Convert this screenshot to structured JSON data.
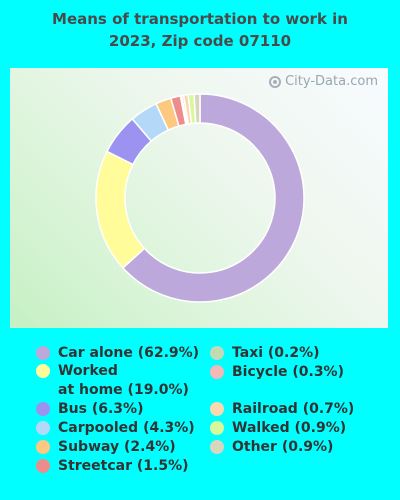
{
  "title_lines": [
    "Means of transportation to work in",
    "2023, Zip code 07110"
  ],
  "watermark": "City-Data.com",
  "chart_data": {
    "type": "pie",
    "donut": true,
    "title": "Means of transportation to work in 2023, Zip code 07110",
    "categories": [
      "Car alone",
      "Worked at home",
      "Bus",
      "Carpooled",
      "Subway",
      "Streetcar",
      "Taxi",
      "Bicycle",
      "Railroad",
      "Walked",
      "Other"
    ],
    "values": [
      62.9,
      19.0,
      6.3,
      4.3,
      2.4,
      1.5,
      0.2,
      0.3,
      0.7,
      0.9,
      0.9
    ],
    "colors": [
      "#bca8db",
      "#fffc99",
      "#9b93ef",
      "#b4d9f8",
      "#fdc980",
      "#ee8c8c",
      "#c2dbb4",
      "#f5b8b8",
      "#fcd8ae",
      "#d9f79b",
      "#d8d6bd"
    ],
    "legend": "bottom",
    "legend_labels": [
      "Car alone (62.9%)",
      "Worked\nat home (19.0%)",
      "Bus (6.3%)",
      "Carpooled (4.3%)",
      "Subway (2.4%)",
      "Streetcar (1.5%)",
      "Taxi (0.2%)",
      "Bicycle (0.3%)",
      "Railroad (0.7%)",
      "Walked (0.9%)",
      "Other (0.9%)"
    ]
  }
}
